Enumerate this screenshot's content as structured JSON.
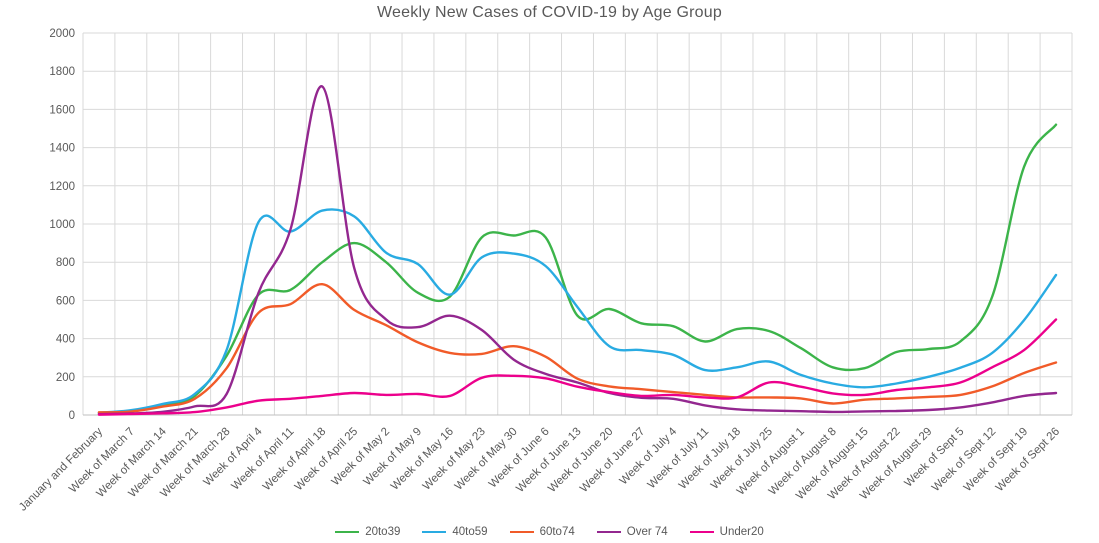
{
  "chart_data": {
    "type": "line",
    "title": "Weekly New Cases of COVID-19 by Age Group",
    "xlabel": "",
    "ylabel": "",
    "ylim": [
      0,
      2000
    ],
    "ytick_step": 200,
    "y_ticks": [
      "0",
      "200",
      "400",
      "600",
      "800",
      "1000",
      "1200",
      "1400",
      "1600",
      "1800",
      "2000"
    ],
    "grid": true,
    "smooth_lines": true,
    "legend_position": "bottom",
    "categories": [
      "January and February",
      "Week of March 7",
      "Week of March 14",
      "Week of March 21",
      "Week of March 28",
      "Week of April 4",
      "Week of April 11",
      "Week of April 18",
      "Week of April 25",
      "Week of May 2",
      "Week of May 9",
      "Week of May 16",
      "Week of May 23",
      "Week of May 30",
      "Week of June 6",
      "Week of June 13",
      "Week of June 20",
      "Week of June 27",
      "Week of July 4",
      "Week of July 11",
      "Week of July 18",
      "Week of July 25",
      "Week of August 1",
      "Week of August 8",
      "Week of August 15",
      "Week of August 22",
      "Week of August 29",
      "Week of Sept 5",
      "Week of Sept 12",
      "Week of Sept 19",
      "Week of Sept 26"
    ],
    "series": [
      {
        "name": "20to39",
        "color": "#3CB44A",
        "values": [
          10,
          22,
          52,
          100,
          310,
          630,
          655,
          800,
          900,
          800,
          640,
          620,
          930,
          940,
          930,
          520,
          555,
          480,
          465,
          385,
          450,
          440,
          350,
          250,
          245,
          330,
          345,
          385,
          620,
          1300,
          1520
        ]
      },
      {
        "name": "40to59",
        "color": "#29ABE2",
        "values": [
          12,
          25,
          58,
          110,
          340,
          1010,
          960,
          1070,
          1040,
          850,
          790,
          630,
          825,
          845,
          780,
          565,
          360,
          340,
          315,
          235,
          250,
          280,
          210,
          165,
          145,
          165,
          200,
          247,
          325,
          497,
          733
        ]
      },
      {
        "name": "60to74",
        "color": "#F15B29",
        "values": [
          14,
          18,
          44,
          85,
          245,
          535,
          580,
          685,
          550,
          470,
          380,
          325,
          320,
          360,
          305,
          190,
          150,
          135,
          120,
          105,
          92,
          92,
          87,
          60,
          80,
          87,
          95,
          105,
          150,
          220,
          275
        ]
      },
      {
        "name": "Over 74",
        "color": "#93278F",
        "values": [
          5,
          8,
          17,
          45,
          110,
          640,
          970,
          1720,
          770,
          500,
          460,
          520,
          445,
          290,
          215,
          170,
          115,
          90,
          85,
          50,
          30,
          23,
          20,
          16,
          19,
          21,
          26,
          40,
          66,
          100,
          115
        ]
      },
      {
        "name": "Under20",
        "color": "#EC008C",
        "values": [
          2,
          5,
          9,
          15,
          40,
          75,
          85,
          100,
          115,
          105,
          110,
          100,
          195,
          205,
          192,
          148,
          120,
          100,
          105,
          92,
          92,
          170,
          148,
          113,
          105,
          131,
          145,
          170,
          250,
          340,
          500
        ]
      }
    ],
    "colors": {
      "title_text": "#595959",
      "axis_text": "#595959",
      "gridline": "#D9D9D9",
      "axis_line": "#BFBFBF"
    }
  }
}
